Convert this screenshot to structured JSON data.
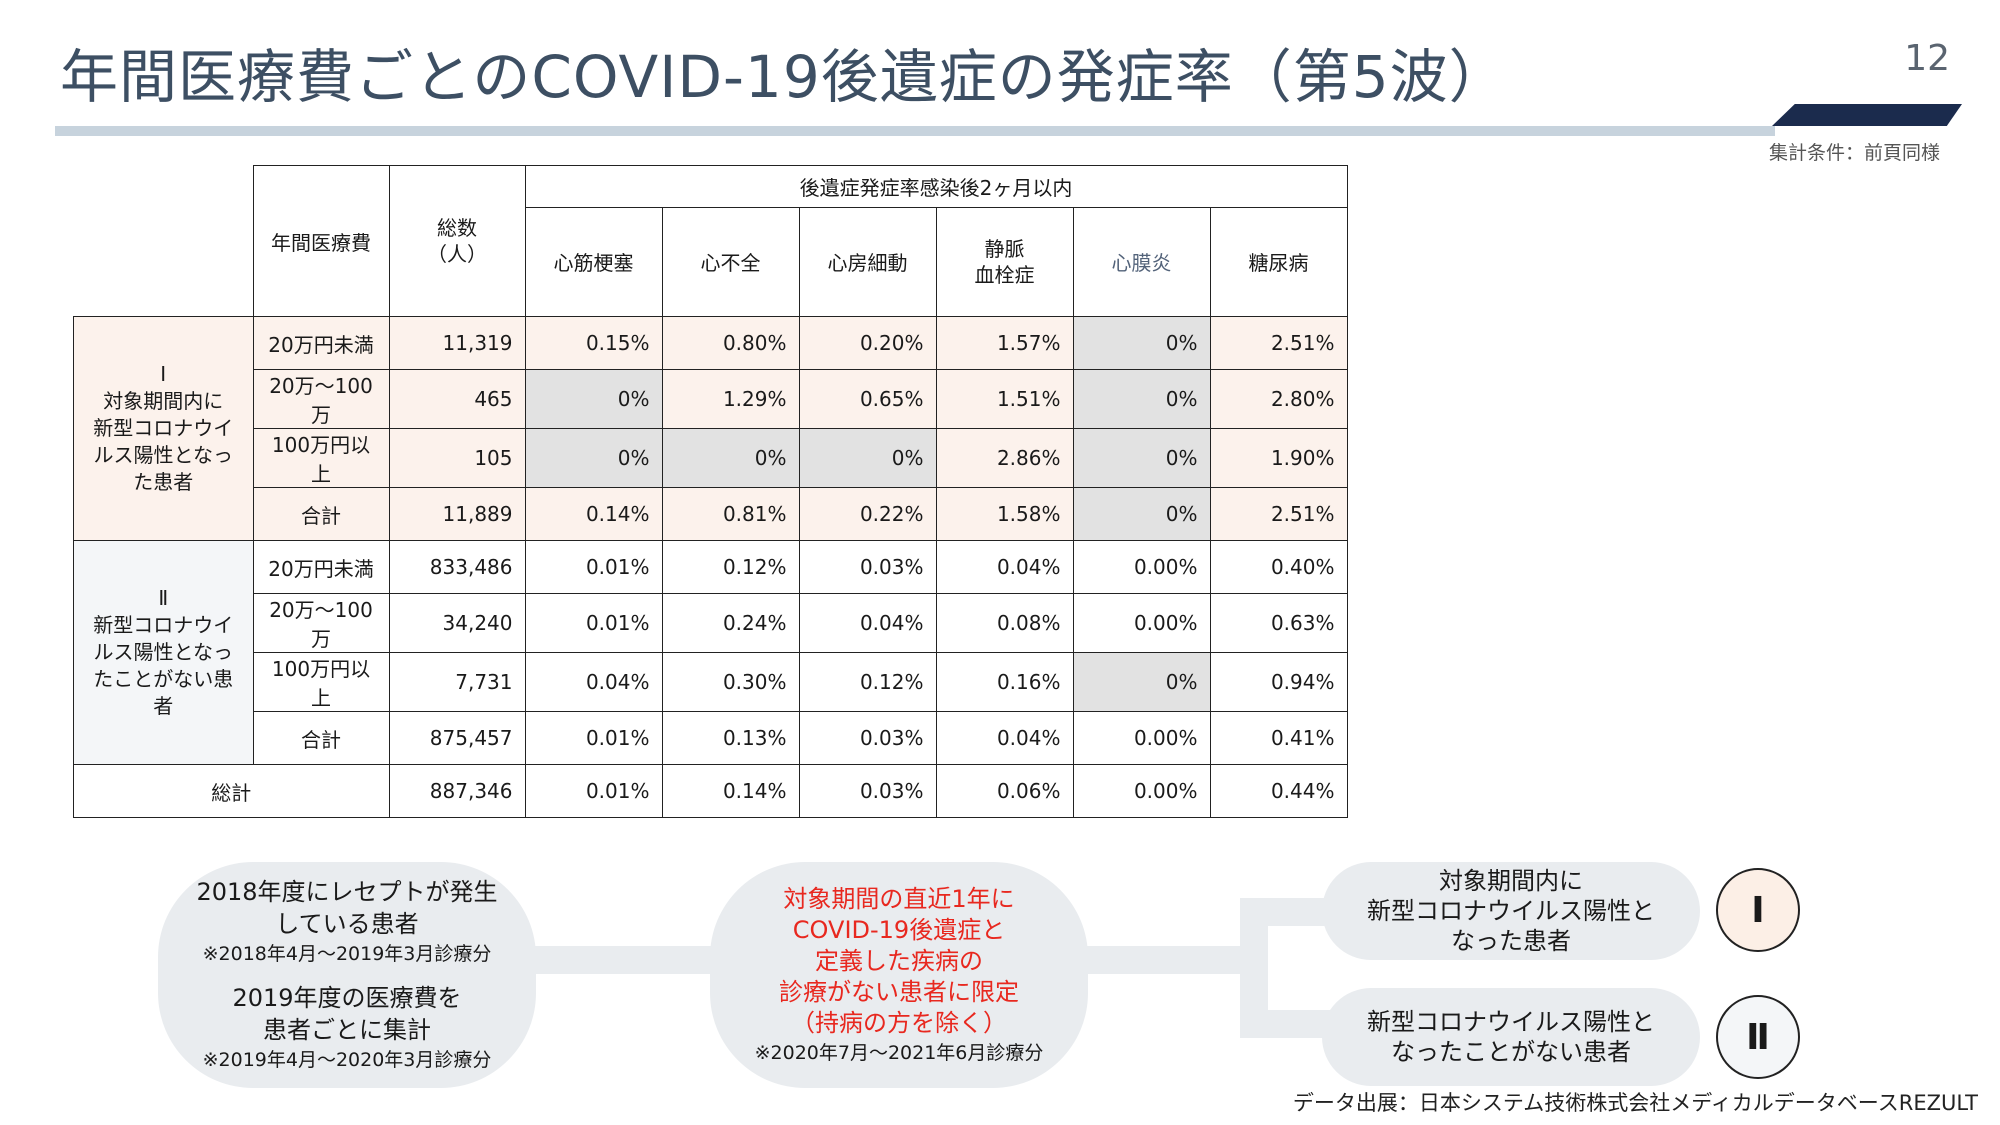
{
  "header": {
    "title": "年間医療費ごとのCOVID-19後遺症の発症率（第5波）",
    "page_number": "12",
    "condition": "集計条件：前頁同様"
  },
  "table": {
    "col_header_cost": "年間医療費",
    "col_header_total": "総数（人）",
    "col_header_group": "後遺症発症率感染後2ヶ月以内",
    "diseases": [
      "心筋梗塞",
      "心不全",
      "心房細動",
      "静脈血栓症",
      "心膜炎",
      "糖尿病"
    ],
    "group1_label": "Ⅰ\n対象期間内に新型コロナウイルス陽性となった患者",
    "group1_rows": [
      {
        "cost": "20万円未満",
        "n": "11,319",
        "v": [
          "0.15%",
          "0.80%",
          "0.20%",
          "1.57%",
          "0%",
          "2.51%"
        ]
      },
      {
        "cost": "20万～100万",
        "n": "465",
        "v": [
          "0%",
          "1.29%",
          "0.65%",
          "1.51%",
          "0%",
          "2.80%"
        ]
      },
      {
        "cost": "100万円以上",
        "n": "105",
        "v": [
          "0%",
          "0%",
          "0%",
          "2.86%",
          "0%",
          "1.90%"
        ]
      },
      {
        "cost": "合計",
        "n": "11,889",
        "v": [
          "0.14%",
          "0.81%",
          "0.22%",
          "1.58%",
          "0%",
          "2.51%"
        ]
      }
    ],
    "group2_label": "Ⅱ\n新型コロナウイルス陽性となったことがない患者",
    "group2_rows": [
      {
        "cost": "20万円未満",
        "n": "833,486",
        "v": [
          "0.01%",
          "0.12%",
          "0.03%",
          "0.04%",
          "0.00%",
          "0.40%"
        ]
      },
      {
        "cost": "20万～100万",
        "n": "34,240",
        "v": [
          "0.01%",
          "0.24%",
          "0.04%",
          "0.08%",
          "0.00%",
          "0.63%"
        ]
      },
      {
        "cost": "100万円以上",
        "n": "7,731",
        "v": [
          "0.04%",
          "0.30%",
          "0.12%",
          "0.16%",
          "0%",
          "0.94%"
        ]
      },
      {
        "cost": "合計",
        "n": "875,457",
        "v": [
          "0.01%",
          "0.13%",
          "0.03%",
          "0.04%",
          "0.00%",
          "0.41%"
        ]
      }
    ],
    "grand_total": {
      "cost": "総計",
      "n": "887,346",
      "v": [
        "0.01%",
        "0.14%",
        "0.03%",
        "0.06%",
        "0.00%",
        "0.44%"
      ]
    }
  },
  "flow": {
    "box1_line1": "2018年度にレセプトが発生",
    "box1_line2": "している患者",
    "box1_note": "※2018年4月～2019年3月診療分",
    "box1_line3": "2019年度の医療費を",
    "box1_line4": "患者ごとに集計",
    "box1_note2": "※2019年4月～2020年3月診療分",
    "box2_line1": "対象期間の直近1年に",
    "box2_line2": "COVID-19後遺症と",
    "box2_line3": "定義した疾病の",
    "box2_line4": "診療がない患者に限定",
    "box2_line5": "（持病の方を除く）",
    "box2_note": "※2020年7月～2021年6月診療分",
    "box3_line1": "対象期間内に",
    "box3_line2": "新型コロナウイルス陽性と",
    "box3_line3": "なった患者",
    "box4_line1": "新型コロナウイルス陽性と",
    "box4_line2": "なったことがない患者",
    "circle1": "Ⅰ",
    "circle2": "Ⅱ"
  },
  "source": "データ出展：日本システム技術株式会社メディカルデータベースREZULT",
  "colors": {
    "title": "#3d4f63",
    "group1_bg": "#fcf2ec",
    "group2_bg": "#f4f6f8",
    "zero_cell": "#e2e2e2",
    "accent_red": "#e8281f",
    "header_accent": "#1b2b4d"
  }
}
